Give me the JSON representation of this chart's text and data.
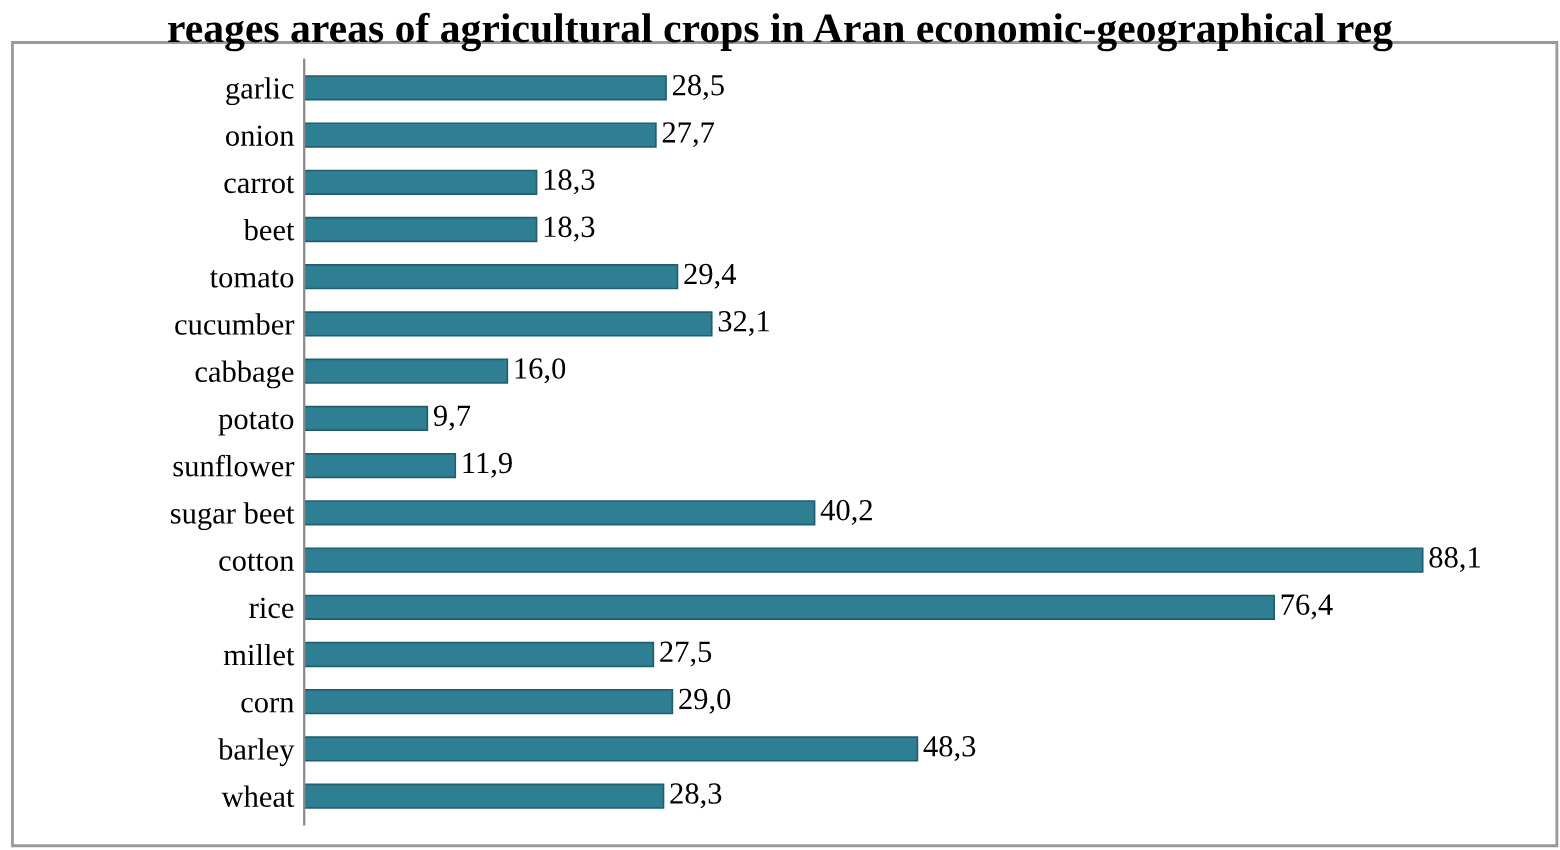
{
  "chart_data": {
    "type": "bar",
    "orientation": "horizontal",
    "title": "reages areas of agricultural crops in Aran economic-geographical reg",
    "categories": [
      "garlic",
      "onion",
      "carrot",
      "beet",
      "tomato",
      "cucumber",
      "cabbage",
      "potato",
      "sunflower",
      "sugar beet",
      "cotton",
      "rice",
      "millet",
      "corn",
      "barley",
      "wheat"
    ],
    "values": [
      28.5,
      27.7,
      18.3,
      18.3,
      29.4,
      32.1,
      16.0,
      9.7,
      11.9,
      40.2,
      88.1,
      76.4,
      27.5,
      29.0,
      48.3,
      28.3
    ],
    "value_labels": [
      "28,5",
      "27,7",
      "18,3",
      "18,3",
      "29,4",
      "32,1",
      "16,0",
      "9,7",
      "11,9",
      "40,2",
      "88,1",
      "76,4",
      "27,5",
      "29,0",
      "48,3",
      "28,3"
    ],
    "color": "#2e7f93",
    "grid": false,
    "legend": false
  }
}
